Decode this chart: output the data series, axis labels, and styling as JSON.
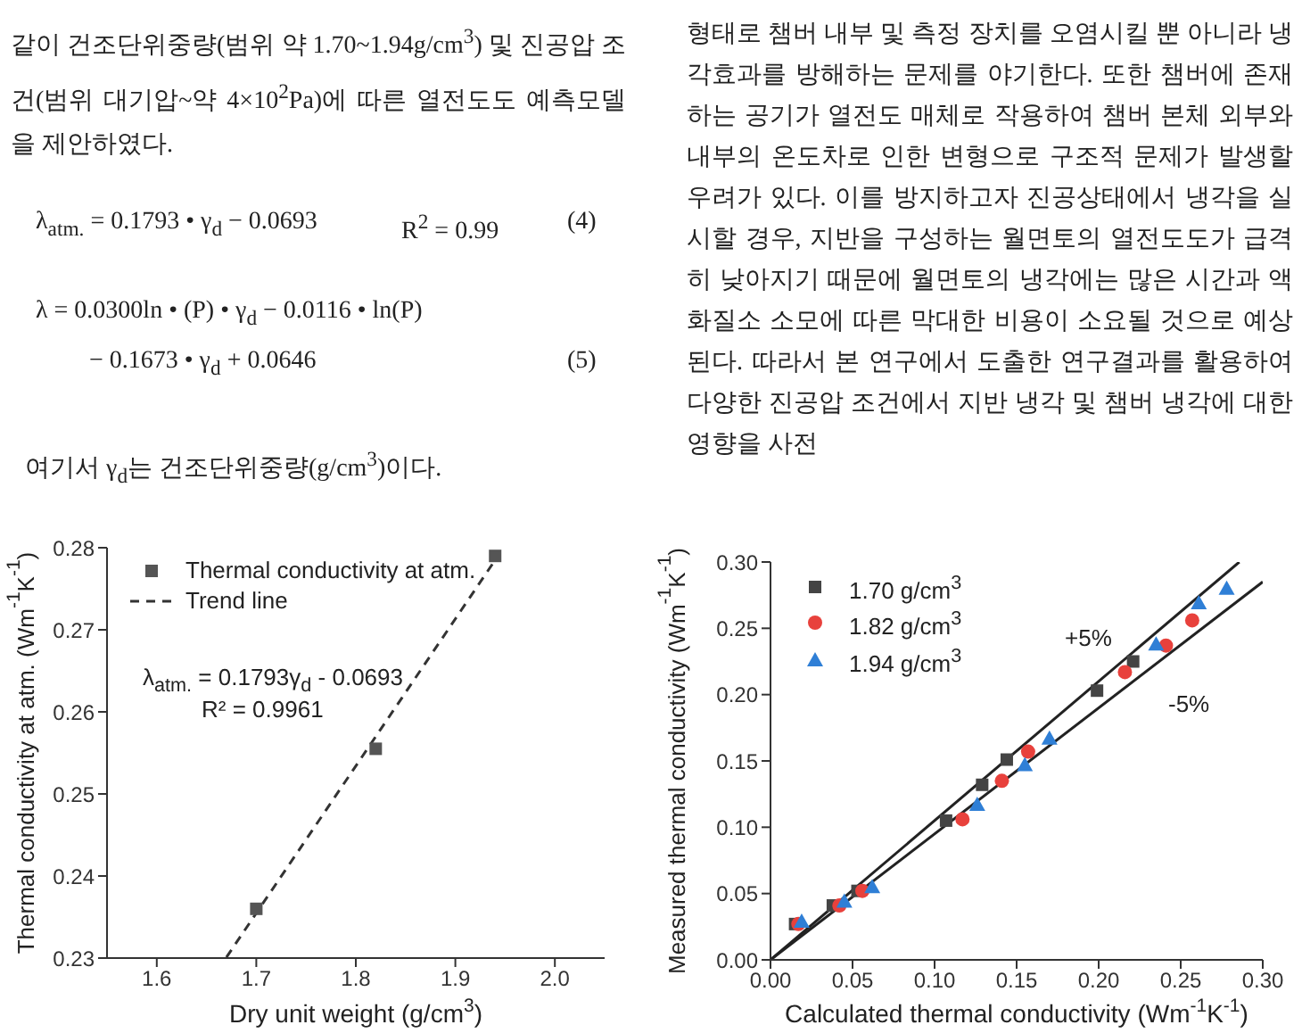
{
  "chart_data": [
    {
      "type": "other",
      "annotations": [
        "같이 건조단위중량(범위 약 1.70~1.94g/cm$^{3}$) 및 진공압 조건(범위 대기압~약 4×10$^{2}$Pa)에 따른 열전도도 예측모델을 제안하였다.",
        "λ$_{atm.}$ = 0.1793 • γ$_{d}$ − 0.0693",
        "R$^{2}$ = 0.99",
        "(4)",
        "λ = 0.0300ln • (P) • γ$_{d}$ − 0.0116 • ln(P)",
        "− 0.1673 • γ$_{d}$ + 0.0646",
        "(5)",
        "여기서 γ$_{d}$는 건조단위중량(g/cm$^{3}$)이다."
      ]
    },
    {
      "type": "other",
      "annotations": [
        "형태로 챔버 내부 및 측정 장치를 오염시킬 뿐 아니라 냉각효과를 방해하는 문제를 야기한다. 또한 챔버에 존재하는 공기가 열전도 매체로 작용하여 챔버 본체 외부와 내부의 온도차로 인한 변형으로 구조적 문제가 발생할 우려가 있다. 이를 방지하고자 진공상태에서 냉각을 실시할 경우, 지반을 구성하는 월면토의 열전도도가 급격히 낮아지기 때문에 월면토의 냉각에는 많은 시간과 액화질소 소모에 따른 막대한 비용이 소요될 것으로 예상된다. 따라서 본 연구에서 도출한 연구결과를 활용하여 다양한 진공압 조건에서 지반 냉각 및 챔버 냉각에 대한 영향을 사전"
      ]
    },
    {
      "type": "scatter",
      "xlabel": "Dry unit weight (g/cm$^{3}$)",
      "ylabel": "Thermal conductivity at atm. (Wm$^{-1}$K$^{-1}$)",
      "xlim": [
        1.55,
        2.05
      ],
      "xticks": [
        1.6,
        1.7,
        1.8,
        1.9,
        {
          "value": 2,
          "label": "2.0"
        }
      ],
      "ylim": [
        0.23,
        0.28
      ],
      "yticks": [
        0.23,
        0.24,
        0.25,
        0.26,
        0.27,
        0.28
      ],
      "legend": "top left",
      "annotations": [
        "λ$_{atm.}$ = 0.1793γ$_{d}$ - 0.0693",
        "R² = 0.9961"
      ],
      "series": [
        {
          "name": "Thermal conductivity at atm.",
          "color": "#555555",
          "marker": "square",
          "x": [
            1.7,
            1.82,
            1.94
          ],
          "values": [
            0.236,
            0.2555,
            0.279
          ]
        },
        {
          "name": "Trend line",
          "type": "line",
          "line_style": "dashed",
          "marker": "none",
          "color": "#333333",
          "x": [
            1.67,
            1.94
          ],
          "values": [
            0.2301,
            0.2785
          ]
        }
      ]
    },
    {
      "type": "scatter",
      "xlabel": "Calculated thermal conductivity (Wm$^{-1}$K$^{-1}$)",
      "ylabel": "Measured thermal conductivity (Wm$^{-1}$K$^{-1}$)",
      "xlim": [
        0,
        0.3
      ],
      "xticks": [
        {
          "value": 0,
          "label": "0.00"
        },
        {
          "value": 0.05,
          "label": "0.05"
        },
        {
          "value": 0.1,
          "label": "0.10"
        },
        {
          "value": 0.15,
          "label": "0.15"
        },
        {
          "value": 0.2,
          "label": "0.20"
        },
        {
          "value": 0.25,
          "label": "0.25"
        },
        {
          "value": 0.3,
          "label": "0.30"
        }
      ],
      "ylim": [
        0,
        0.3
      ],
      "yticks": [
        {
          "value": 0,
          "label": "0.00"
        },
        {
          "value": 0.05,
          "label": "0.05"
        },
        {
          "value": 0.1,
          "label": "0.10"
        },
        {
          "value": 0.15,
          "label": "0.15"
        },
        {
          "value": 0.2,
          "label": "0.20"
        },
        {
          "value": 0.25,
          "label": "0.25"
        },
        {
          "value": 0.3,
          "label": "0.30"
        }
      ],
      "legend": "top left",
      "annotations": [
        "+5%",
        "-5%"
      ],
      "series": [
        {
          "name": "1.70 g/cm$^{3}$",
          "color": "#444444",
          "marker": "square",
          "x": [
            0.015,
            0.038,
            0.053,
            0.107,
            0.129,
            0.144,
            0.199,
            0.221
          ],
          "values": [
            0.027,
            0.041,
            0.052,
            0.105,
            0.132,
            0.151,
            0.203,
            0.225
          ]
        },
        {
          "name": "1.82 g/cm$^{3}$",
          "color": "#e8413c",
          "marker": "circle",
          "x": [
            0.017,
            0.042,
            0.056,
            0.117,
            0.141,
            0.157,
            0.216,
            0.241,
            0.257
          ],
          "values": [
            0.027,
            0.041,
            0.052,
            0.106,
            0.135,
            0.157,
            0.217,
            0.237,
            0.256
          ]
        },
        {
          "name": "1.94 g/cm$^{3}$",
          "color": "#2f7fd6",
          "marker": "triangle",
          "x": [
            0.019,
            0.045,
            0.062,
            0.126,
            0.155,
            0.17,
            0.235,
            0.261,
            0.278
          ],
          "values": [
            0.029,
            0.044,
            0.055,
            0.117,
            0.147,
            0.167,
            0.238,
            0.269,
            0.28
          ]
        },
        {
          "type": "line",
          "line_style": "solid",
          "marker": "none",
          "color": "#222222",
          "x": [
            0,
            0.2857
          ],
          "values": [
            0,
            0.3
          ]
        },
        {
          "type": "line",
          "line_style": "solid",
          "marker": "none",
          "color": "#222222",
          "x": [
            0,
            0.3
          ],
          "values": [
            0,
            0.285
          ]
        }
      ]
    }
  ]
}
